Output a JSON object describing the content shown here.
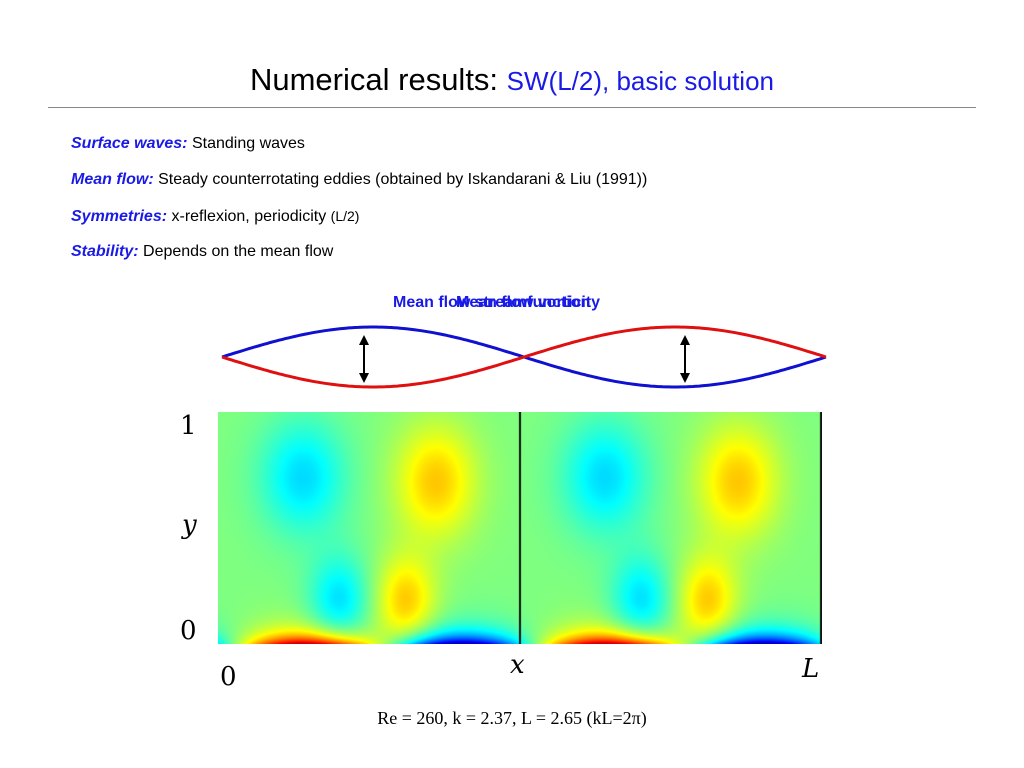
{
  "title": {
    "main": "Numerical results: ",
    "sub": "SW(L/2), basic solution"
  },
  "bullets": [
    {
      "label": "Surface waves:",
      "text": " Standing waves",
      "small": ""
    },
    {
      "label": "Mean flow:",
      "text": " Steady counterrotating eddies (obtained by Iskandarani & Liu (1991))",
      "small": ""
    },
    {
      "label": "Symmetries:",
      "text": " x-reflexion, periodicity ",
      "small": "(L/2)"
    },
    {
      "label": "Stability:",
      "text": " Depends on the mean flow",
      "small": ""
    }
  ],
  "figure": {
    "label_a": "Mean flow streamfunction",
    "label_b": "Mean flow vorticity",
    "colors": {
      "wave_a": "#1010d0",
      "wave_b": "#e01010",
      "label": "#1a1ae6"
    },
    "axes": {
      "y_label": "y",
      "x_label": "x",
      "y_tick_top": "1",
      "y_tick_bottom": "0",
      "x_tick_left": "0",
      "x_tick_right": "L"
    },
    "colormap": "jet"
  },
  "caption": {
    "text_before": "Re = 260, k = 2.37, L = 2.65 (kL=2",
    "pi": "π",
    "text_after": ")"
  }
}
